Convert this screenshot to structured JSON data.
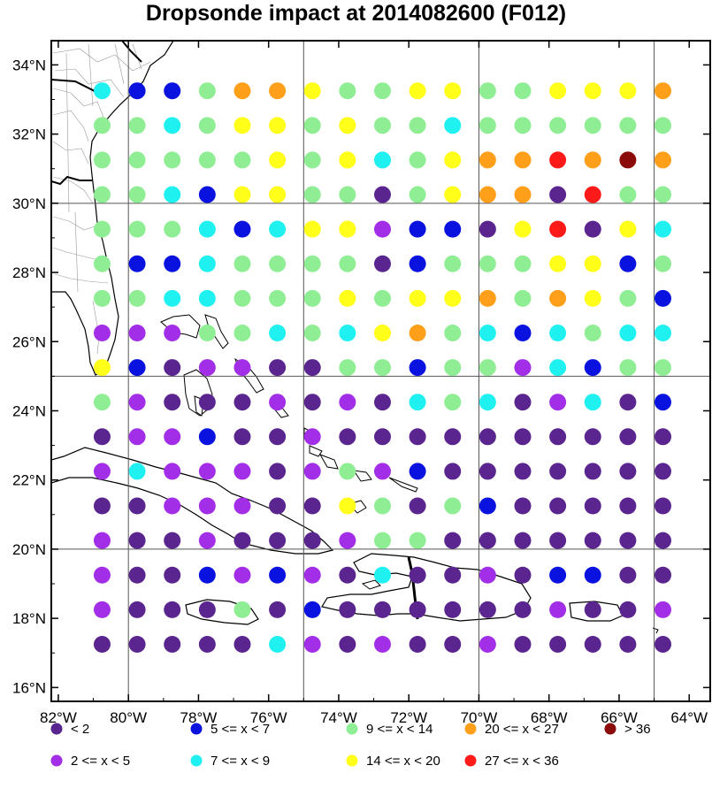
{
  "title": "Dropsonde impact at 2014082600 (F012)",
  "map": {
    "lon_range": [
      -82.2,
      -63.4
    ],
    "lat_range": [
      15.6,
      34.7
    ],
    "x_ticks": [
      -82,
      -80,
      -78,
      -76,
      -74,
      -72,
      -70,
      -68,
      -66,
      -64
    ],
    "x_tick_labels": [
      "82°W",
      "80°W",
      "78°W",
      "76°W",
      "74°W",
      "72°W",
      "70°W",
      "68°W",
      "66°W",
      "64°W"
    ],
    "y_ticks": [
      16,
      18,
      20,
      22,
      24,
      26,
      28,
      30,
      32,
      34
    ],
    "y_tick_labels": [
      "16°N",
      "18°N",
      "20°N",
      "22°N",
      "24°N",
      "26°N",
      "28°N",
      "30°N",
      "32°N",
      "34°N"
    ],
    "panel_lines_lon": [
      -80,
      -75,
      -70,
      -65
    ],
    "panel_lines_lat": [
      20,
      25,
      30
    ],
    "land_color": "#ffffff",
    "coast_color": "#000000"
  },
  "legend": [
    {
      "label": "<  2",
      "color": "#5b2590"
    },
    {
      "label": "5 <= x <  7",
      "color": "#0a12e0"
    },
    {
      "label": "9 <= x < 14",
      "color": "#8fee93"
    },
    {
      "label": "20 <= x < 27",
      "color": "#ff9f1a"
    },
    {
      "label": "> 36",
      "color": "#8b0a0a"
    },
    {
      "label": "2 <= x <  5",
      "color": "#a22ee8"
    },
    {
      "label": "7 <= x <  9",
      "color": "#1ff0f0"
    },
    {
      "label": "14 <= x < 20",
      "color": "#ffff1a"
    },
    {
      "label": "27 <= x < 36",
      "color": "#ff1a1a"
    }
  ],
  "grid": {
    "lons": [
      -80.75,
      -79.75,
      -78.75,
      -77.75,
      -76.75,
      -75.75,
      -74.75,
      -73.75,
      -72.75,
      -71.75,
      -70.75,
      -69.75,
      -68.75,
      -67.75,
      -66.75,
      -65.75,
      -64.75
    ],
    "lats": [
      33.25,
      32.25,
      31.25,
      30.25,
      29.25,
      28.25,
      27.25,
      26.25,
      25.25,
      24.25,
      23.25,
      22.25,
      21.25,
      20.25,
      19.25,
      18.25,
      17.25
    ],
    "rows": [
      "ab__________ccccc",
      "_c_______________",
      "_________________",
      "_________________",
      "_________________",
      "_________________",
      "_________________",
      "_________________",
      "_________________",
      "_________________",
      "_________________",
      "_________________",
      "_________________",
      "_________________",
      "_________________",
      "_________________",
      "_________________"
    ],
    "values": [
      "CBBGOOYGGYYGGYYYO",
      "GGCGYYGYGGCGGGGGG",
      "GGGGGYGYCGYOOROQO",
      "GGCBYYGGDGYOODRGG",
      "GGGCBCYYPBBDYRDYC",
      "GBBCGGGGDBGGGYYBG",
      "GGCCGGGYGYYOGOYGB",
      "PPPGGCGCYOGCBCGCC",
      "YBDPPDDGGBGGPCBGG",
      "GPDDDPDPDCGCDPCDB",
      "DPPBDDPDDDDDDDDDD",
      "PCPPPDPGPBDDDDDDD",
      "DDPPPDDYGDGBDDDDD",
      "PDDPDDDPGGDDDDDDD",
      "PDDBPBPDCDDPDBBDD",
      "PDDDGDBDDDDDDPDDP",
      "DDDDDCPDPDDPDDDDD"
    ],
    "codes": {
      "D": "#5b2590",
      "P": "#a22ee8",
      "B": "#0a12e0",
      "C": "#1ff0f0",
      "G": "#8fee93",
      "Y": "#ffff1a",
      "O": "#ff9f1a",
      "R": "#ff1a1a",
      "Q": "#8b0a0a"
    }
  }
}
